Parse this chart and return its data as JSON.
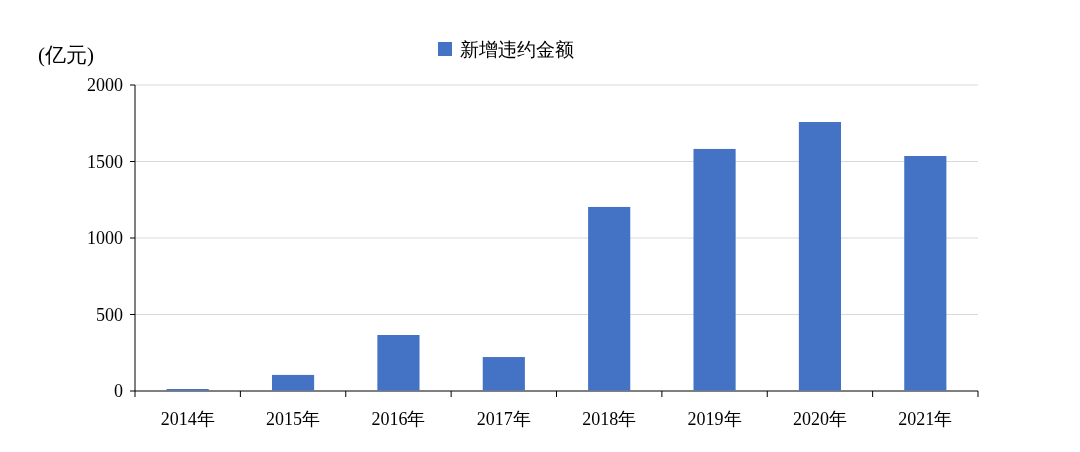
{
  "chart_data": {
    "type": "bar",
    "ylabel": "(亿元)",
    "categories": [
      "2014年",
      "2015年",
      "2016年",
      "2017年",
      "2018年",
      "2019年",
      "2020年",
      "2021年"
    ],
    "series": [
      {
        "name": "新增违约金额",
        "color": "#4472c4",
        "values": [
          13,
          105,
          366,
          222,
          1203,
          1582,
          1758,
          1536
        ]
      }
    ],
    "ylim": [
      0,
      2000
    ],
    "yticks": [
      0,
      500,
      1000,
      1500,
      2000
    ],
    "grid": "y",
    "legend": "top"
  }
}
